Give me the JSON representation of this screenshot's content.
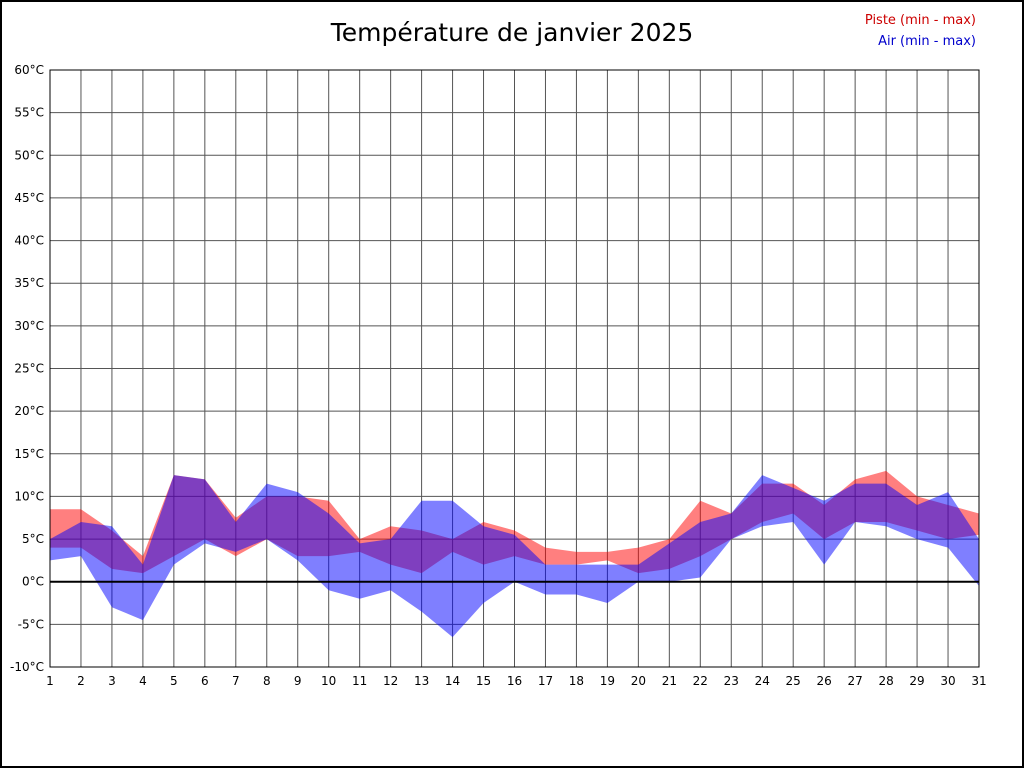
{
  "title": "Température de janvier 2025",
  "legend": {
    "piste": {
      "label": "Piste (min - max)",
      "color": "#cc0000"
    },
    "air": {
      "label": "Air (min - max)",
      "color": "#0000cc"
    }
  },
  "colors": {
    "grid": "#555555",
    "axis": "#000000",
    "zero_line": "#000000"
  },
  "chart_data": {
    "type": "area",
    "title": "Température de janvier 2025",
    "xlabel": "",
    "ylabel": "",
    "ylim": [
      -10,
      60
    ],
    "y_step": 5,
    "grid": true,
    "zero_line": true,
    "legend_position": "top-right",
    "x": [
      1,
      2,
      3,
      4,
      5,
      6,
      7,
      8,
      9,
      10,
      11,
      12,
      13,
      14,
      15,
      16,
      17,
      18,
      19,
      20,
      21,
      22,
      23,
      24,
      25,
      26,
      27,
      28,
      29,
      30,
      31
    ],
    "y_ticks": [
      "60°C",
      "55°C",
      "50°C",
      "45°C",
      "40°C",
      "35°C",
      "30°C",
      "25°C",
      "20°C",
      "15°C",
      "10°C",
      "5°C",
      "0°C",
      "-5°C",
      "-10°C"
    ],
    "series": [
      {
        "key": "piste",
        "name": "Piste (min - max)",
        "color": "#ff0000",
        "opacity": 0.5,
        "max": [
          8.5,
          8.5,
          6,
          3,
          12.5,
          12,
          7.5,
          10,
          10,
          9.5,
          5,
          6.5,
          6,
          5,
          7,
          6,
          4,
          3.5,
          3.5,
          4,
          5,
          9.5,
          8,
          11.5,
          11.5,
          9,
          12,
          13,
          10,
          9,
          8
        ],
        "min": [
          4,
          4,
          1.5,
          1,
          3,
          5,
          3,
          5,
          3,
          3,
          3.5,
          2,
          1,
          3.5,
          2,
          3,
          2,
          2,
          2.5,
          1,
          1.5,
          3,
          5,
          7,
          8,
          5,
          7,
          7,
          6,
          5,
          5.5
        ]
      },
      {
        "key": "air",
        "name": "Air (min - max)",
        "color": "#0000ff",
        "opacity": 0.5,
        "max": [
          5,
          7,
          6.5,
          2,
          12.5,
          12,
          7,
          11.5,
          10.5,
          8,
          4.5,
          5,
          9.5,
          9.5,
          6.5,
          5.5,
          2,
          2,
          2,
          2,
          4.5,
          7,
          8,
          12.5,
          11,
          9.5,
          11.5,
          11.5,
          9,
          10.5,
          5
        ],
        "min": [
          2.5,
          3,
          -3,
          -4.5,
          2,
          4.5,
          3.5,
          5,
          2.5,
          -1,
          -2,
          -1,
          -3.5,
          -6.5,
          -2.5,
          0,
          -1.5,
          -1.5,
          -2.5,
          0,
          0,
          0.5,
          5,
          6.5,
          7,
          2,
          7,
          6.5,
          5,
          4,
          -0.5
        ]
      }
    ]
  }
}
